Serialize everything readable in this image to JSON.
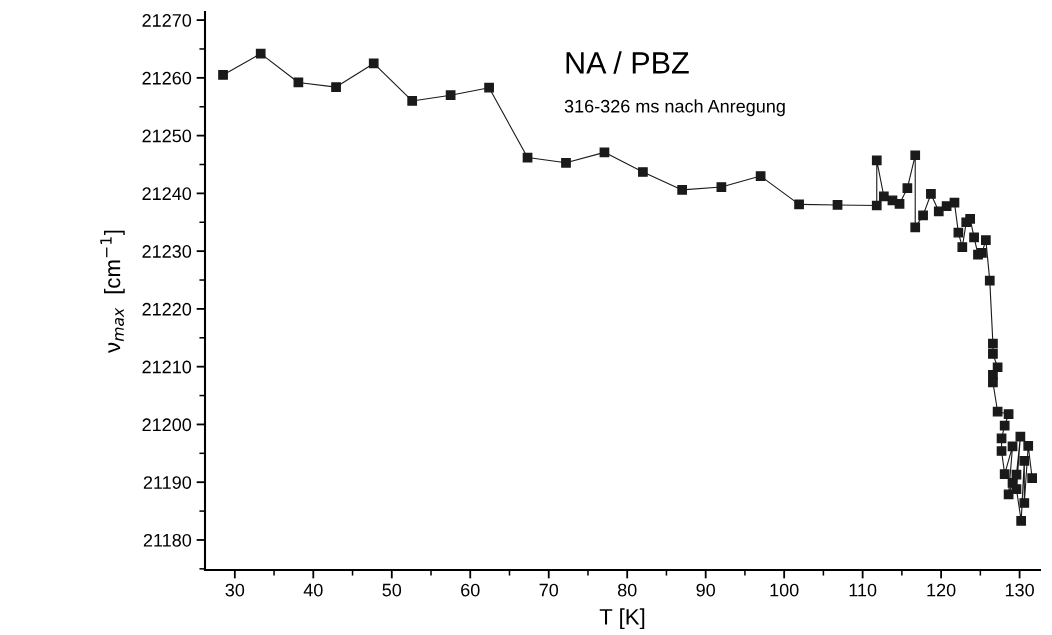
{
  "chart_data": {
    "type": "line",
    "title": "NA / PBZ",
    "subtitle": "316-326 ms nach Anregung",
    "xlabel": "T [K]",
    "ylabel": "ν$_{max}$  [cm$^{−1}$]",
    "x": [
      28.5,
      33.3,
      38.1,
      42.9,
      47.7,
      52.6,
      57.5,
      62.4,
      67.3,
      72.2,
      77.1,
      82.0,
      87.0,
      92.0,
      97.0,
      101.9,
      106.8,
      111.8,
      111.8,
      112.7,
      113.8,
      114.7,
      115.7,
      116.7,
      116.7,
      117.7,
      118.7,
      119.7,
      120.7,
      121.7,
      122.2,
      122.7,
      123.2,
      123.7,
      124.2,
      124.7,
      125.2,
      125.7,
      126.2,
      126.6,
      126.6,
      127.2,
      126.6,
      126.6,
      127.2,
      128.6,
      128.1,
      127.7,
      127.7,
      128.1,
      129.1,
      128.6,
      129.1,
      129.6,
      130.1,
      129.6,
      130.2,
      130.6,
      130.6,
      131.1,
      131.6
    ],
    "series": [
      {
        "color": "#1a1a1a",
        "values": [
          21260.5,
          21264.2,
          21259.2,
          21258.4,
          21262.5,
          21256.0,
          21257.0,
          21258.3,
          21246.2,
          21245.3,
          21247.1,
          21243.7,
          21240.6,
          21241.1,
          21243.0,
          21238.1,
          21238.0,
          21237.9,
          21245.7,
          21239.5,
          21238.8,
          21238.2,
          21240.9,
          21246.6,
          21234.1,
          21236.2,
          21239.9,
          21236.9,
          21237.8,
          21238.4,
          21233.2,
          21230.7,
          21235.0,
          21235.6,
          21232.4,
          21229.4,
          21229.7,
          21231.9,
          21224.9,
          21214.0,
          21212.2,
          21209.9,
          21208.6,
          21207.3,
          21202.2,
          21201.8,
          21199.8,
          21197.6,
          21195.4,
          21191.4,
          21196.2,
          21187.9,
          21189.9,
          21191.3,
          21197.9,
          21188.8,
          21183.3,
          21193.7,
          21186.4,
          21196.3,
          21190.7
        ]
      }
    ],
    "xlim": [
      26.2,
      132.6
    ],
    "ylim": [
      21174.8,
      21271.4
    ],
    "xticks": [
      30,
      40,
      50,
      60,
      70,
      80,
      90,
      100,
      110,
      120,
      130
    ],
    "yticks": [
      21180,
      21190,
      21200,
      21210,
      21220,
      21230,
      21240,
      21250,
      21260,
      21270
    ],
    "marker": "square",
    "line_style": "solid",
    "grid": false,
    "legend": false
  }
}
